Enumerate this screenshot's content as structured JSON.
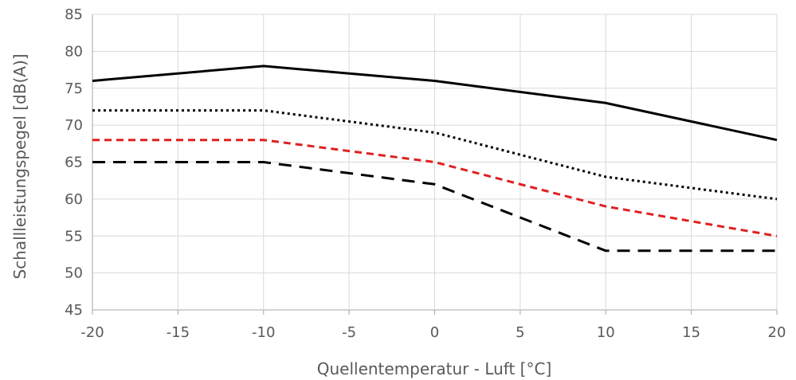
{
  "chart_data": {
    "type": "line",
    "title": "",
    "xlabel": "Quellentemperatur - Luft [°C]",
    "ylabel": "Schallleistungspegel [dB(A)]",
    "xlim": [
      -20,
      20
    ],
    "ylim": [
      45,
      85
    ],
    "x_ticks": [
      -20,
      -15,
      -10,
      -5,
      0,
      5,
      10,
      15,
      20
    ],
    "y_ticks": [
      45,
      50,
      55,
      60,
      65,
      70,
      75,
      80,
      85
    ],
    "grid": true,
    "legend": "none",
    "series": [
      {
        "color": "#000000",
        "dash": "solid",
        "x": [
          -20,
          -10,
          0,
          10,
          20
        ],
        "y": [
          76,
          78,
          76,
          73,
          68
        ]
      },
      {
        "color": "#000000",
        "dash": "dotted",
        "x": [
          -20,
          -10,
          0,
          10,
          20
        ],
        "y": [
          72,
          72,
          69,
          63,
          60
        ]
      },
      {
        "color": "#e02020",
        "dash": "dashed",
        "x": [
          -20,
          -10,
          0,
          10,
          20
        ],
        "y": [
          68,
          68,
          65,
          59,
          55
        ]
      },
      {
        "color": "#000000",
        "dash": "longdash",
        "x": [
          -20,
          -10,
          0,
          10,
          20
        ],
        "y": [
          65,
          65,
          62,
          53,
          53
        ]
      }
    ]
  }
}
